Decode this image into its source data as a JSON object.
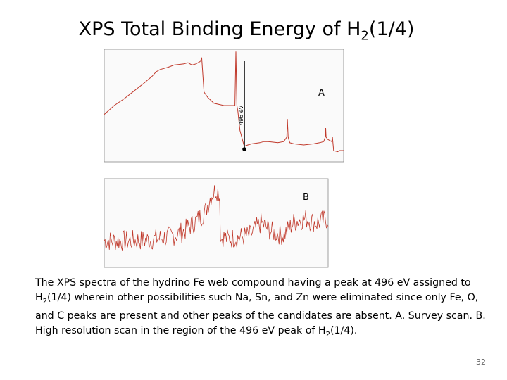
{
  "title": {
    "prefix": "XPS Total Binding Energy of H",
    "subscript": "2",
    "suffix": "(1/4)"
  },
  "caption": {
    "part1": "The XPS spectra of the hydrino Fe web compound having a peak at 496 eV assigned to H",
    "sub1": "2",
    "part2": "(1/4) wherein other possibilities such Na, Sn, and Zn were eliminated since only Fe, O, and C peaks are present and other peaks of the candidates are absent.  A.  Survey scan.  B.  High resolution scan in the region of the 496 eV peak of H",
    "sub2": "2",
    "part3": "(1/4)."
  },
  "page_number": "32",
  "chart_data": [
    {
      "type": "line",
      "panel_label": "A",
      "annotation": "496 eV",
      "line_color": "#c0392b",
      "grid": false,
      "xlim": [
        1200,
        0
      ],
      "ylim": [
        0,
        100
      ],
      "x": [
        1200,
        1150,
        1100,
        1050,
        1000,
        960,
        940,
        920,
        880,
        850,
        800,
        780,
        760,
        740,
        720,
        711,
        700,
        680,
        650,
        600,
        560,
        545,
        540,
        535,
        530,
        520,
        500,
        496,
        480,
        460,
        420,
        400,
        380,
        330,
        300,
        285,
        282,
        278,
        270,
        250,
        200,
        150,
        120,
        100,
        92,
        90,
        88,
        80,
        60,
        58,
        56,
        50,
        30,
        20,
        0
      ],
      "y": [
        42,
        50,
        56,
        63,
        70,
        76,
        80,
        82,
        84,
        86,
        87,
        88,
        86,
        87,
        89,
        92,
        62,
        57,
        52,
        50,
        50,
        50,
        98,
        50,
        45,
        28,
        15,
        14,
        15,
        16,
        17,
        18,
        18,
        17,
        18,
        22,
        38,
        22,
        17,
        16,
        15,
        16,
        17,
        18,
        22,
        30,
        22,
        20,
        18,
        20,
        22,
        10,
        9,
        10,
        10
      ]
    },
    {
      "type": "line",
      "panel_label": "B",
      "line_color": "#c0392b",
      "grid": false,
      "xlim": [
        600,
        400
      ],
      "ylim": [
        0,
        100
      ],
      "x": [
        600,
        580,
        560,
        540,
        530,
        520,
        510,
        505,
        500,
        497,
        496,
        494,
        490,
        480,
        470,
        460,
        450,
        440,
        430,
        420,
        410,
        400
      ],
      "y": [
        30,
        30,
        31,
        35,
        40,
        50,
        62,
        80,
        88,
        84,
        30,
        35,
        32,
        34,
        36,
        50,
        40,
        36,
        52,
        55,
        50,
        55
      ],
      "noise_amplitude": 12
    }
  ]
}
